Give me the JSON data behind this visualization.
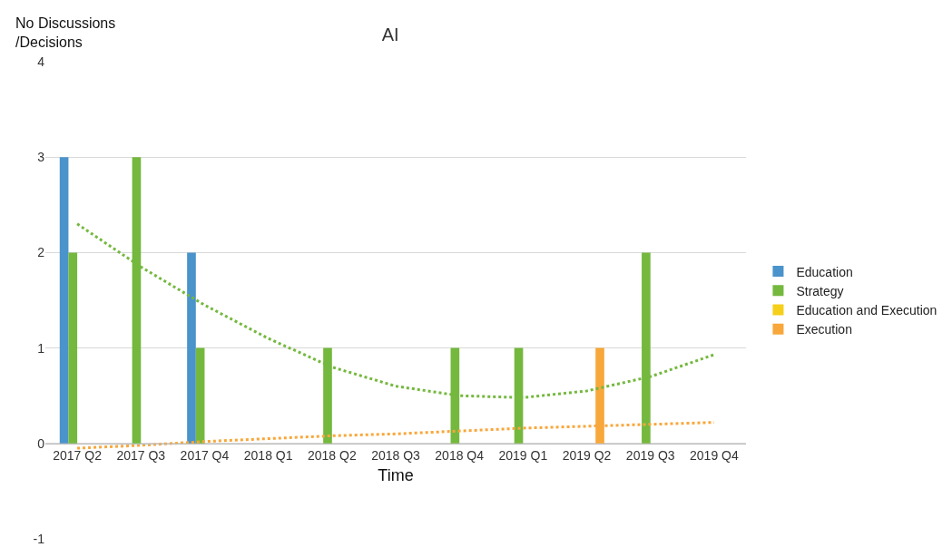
{
  "chart_data": {
    "type": "bar",
    "title": "AI",
    "xlabel": "Time",
    "ylabel": "No Discussions\n/Decisions",
    "categories": [
      "2017 Q2",
      "2017 Q3",
      "2017 Q4",
      "2018 Q1",
      "2018 Q2",
      "2018 Q3",
      "2018 Q4",
      "2019 Q1",
      "2019 Q2",
      "2019 Q3",
      "2019 Q4"
    ],
    "series": [
      {
        "name": "Education",
        "color": "#4a93cb",
        "values": [
          3,
          null,
          2,
          null,
          null,
          null,
          null,
          null,
          null,
          null,
          null
        ]
      },
      {
        "name": "Strategy",
        "color": "#74b83e",
        "values": [
          2,
          3,
          1,
          null,
          1,
          null,
          1,
          1,
          null,
          2,
          null
        ]
      },
      {
        "name": "Education and Execution",
        "color": "#f5cf1a",
        "values": [
          null,
          null,
          null,
          null,
          null,
          null,
          null,
          null,
          null,
          null,
          null
        ]
      },
      {
        "name": "Execution",
        "color": "#f8a73b",
        "values": [
          null,
          null,
          null,
          null,
          null,
          null,
          null,
          null,
          1,
          null,
          null
        ]
      },
      {
        "type": "line",
        "color": "#74b83e",
        "line_style": "dotted",
        "values": [
          2.3,
          1.85,
          1.45,
          1.1,
          0.8,
          0.6,
          0.5,
          0.48,
          0.55,
          0.7,
          0.93
        ]
      },
      {
        "type": "line",
        "color": "#f8a73b",
        "line_style": "dotted",
        "values": [
          -0.05,
          -0.02,
          0.02,
          0.05,
          0.08,
          0.1,
          0.13,
          0.16,
          0.18,
          0.2,
          0.22
        ]
      }
    ],
    "ylim": [
      -1,
      4
    ],
    "yticks": [
      -1,
      0,
      1,
      2,
      3,
      4
    ],
    "grid": "y",
    "legend": "right",
    "marker": "none"
  }
}
